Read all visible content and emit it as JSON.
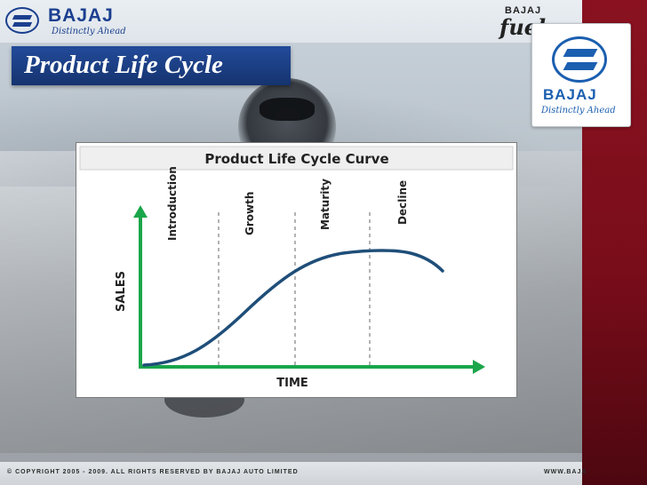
{
  "header": {
    "logo_word": "BAJAJ",
    "logo_tagline": "Distinctly Ahead",
    "brand_word": "BAJAJ",
    "brand_script": "fuel"
  },
  "slide": {
    "title": "Product Life Cycle"
  },
  "logo_card": {
    "word": "BAJAJ",
    "tagline": "Distinctly Ahead"
  },
  "chart_data": {
    "type": "line",
    "title": "Product Life Cycle Curve",
    "xlabel": "TIME",
    "ylabel": "SALES",
    "stages": [
      "Introduction",
      "Growth",
      "Maturity",
      "Decline"
    ],
    "grid": false,
    "colors": {
      "curve": "#1f4e79",
      "axes": "#1aa64a",
      "dividers": "#9a9a9a"
    }
  },
  "footer": {
    "copyright": "© COPYRIGHT 2005 - 2009. ALL RIGHTS RESERVED BY BAJAJ AUTO LIMITED",
    "website": "WWW.BAJA"
  }
}
